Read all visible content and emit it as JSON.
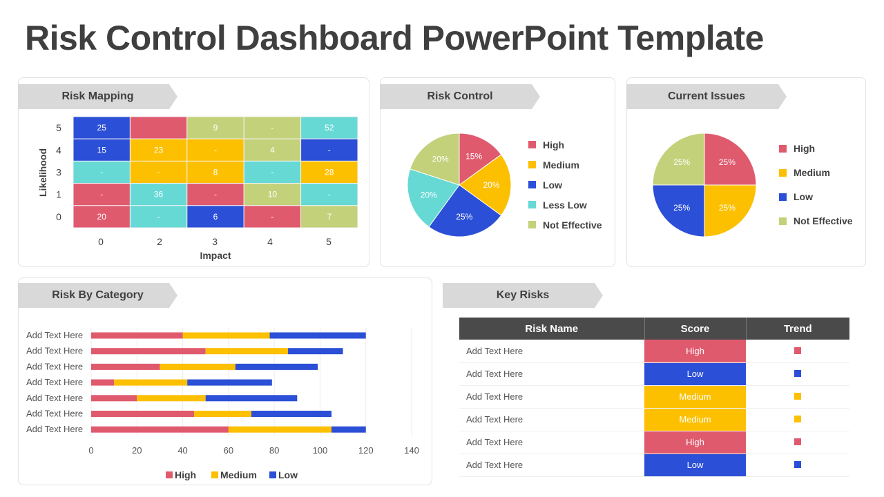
{
  "title": "Risk Control Dashboard PowerPoint Template",
  "colors": {
    "high": "#e05a6e",
    "medium": "#fcc000",
    "low": "#2b4fd6",
    "less_low": "#66d9d5",
    "not_effective": "#c3d17a"
  },
  "risk_mapping": {
    "heading": "Risk Mapping",
    "chart_data": {
      "type": "heatmap",
      "xlabel": "Impact",
      "ylabel": "Likelihood",
      "x_ticks": [
        "0",
        "2",
        "3",
        "4",
        "5"
      ],
      "y_ticks": [
        "5",
        "4",
        "3",
        "1",
        "0"
      ],
      "cells": [
        [
          {
            "v": "25",
            "c": "low"
          },
          {
            "v": "",
            "c": "high"
          },
          {
            "v": "9",
            "c": "not_effective"
          },
          {
            "v": "-",
            "c": "not_effective"
          },
          {
            "v": "52",
            "c": "less_low"
          }
        ],
        [
          {
            "v": "15",
            "c": "low"
          },
          {
            "v": "23",
            "c": "medium"
          },
          {
            "v": "-",
            "c": "medium"
          },
          {
            "v": "4",
            "c": "not_effective"
          },
          {
            "v": "-",
            "c": "low"
          }
        ],
        [
          {
            "v": "-",
            "c": "less_low"
          },
          {
            "v": "-",
            "c": "medium"
          },
          {
            "v": "8",
            "c": "medium"
          },
          {
            "v": "-",
            "c": "less_low"
          },
          {
            "v": "28",
            "c": "medium"
          }
        ],
        [
          {
            "v": "-",
            "c": "high"
          },
          {
            "v": "36",
            "c": "less_low"
          },
          {
            "v": "-",
            "c": "high"
          },
          {
            "v": "10",
            "c": "not_effective"
          },
          {
            "v": "-",
            "c": "less_low"
          }
        ],
        [
          {
            "v": "20",
            "c": "high"
          },
          {
            "v": "-",
            "c": "less_low"
          },
          {
            "v": "6",
            "c": "low"
          },
          {
            "v": "-",
            "c": "high"
          },
          {
            "v": "7",
            "c": "not_effective"
          }
        ]
      ]
    }
  },
  "risk_control": {
    "heading": "Risk Control",
    "chart_data": {
      "type": "pie",
      "labels": [
        "High",
        "Medium",
        "Low",
        "Less Low",
        "Not Effective"
      ],
      "keys": [
        "high",
        "medium",
        "low",
        "less_low",
        "not_effective"
      ],
      "values": [
        15,
        20,
        25,
        20,
        20
      ],
      "data_labels": [
        "15%",
        "20%",
        "25%",
        "20%",
        "20%"
      ],
      "legend": "right"
    }
  },
  "current_issues": {
    "heading": "Current Issues",
    "chart_data": {
      "type": "pie",
      "labels": [
        "High",
        "Medium",
        "Low",
        "Not Effective"
      ],
      "keys": [
        "high",
        "medium",
        "low",
        "not_effective"
      ],
      "values": [
        25,
        25,
        25,
        25
      ],
      "data_labels": [
        "25%",
        "25%",
        "25%",
        "25%"
      ],
      "legend": "right"
    }
  },
  "risk_by_category": {
    "heading": "Risk By Category",
    "chart_data": {
      "type": "bar",
      "orientation": "horizontal",
      "stacked": true,
      "categories": [
        "Add Text Here",
        "Add Text Here",
        "Add Text Here",
        "Add Text Here",
        "Add Text Here",
        "Add Text Here",
        "Add Text Here"
      ],
      "series": [
        {
          "name": "High",
          "key": "high",
          "values": [
            40,
            50,
            30,
            10,
            20,
            45,
            60
          ]
        },
        {
          "name": "Medium",
          "key": "medium",
          "values": [
            38,
            36,
            33,
            32,
            30,
            25,
            45
          ]
        },
        {
          "name": "Low",
          "key": "low",
          "values": [
            42,
            24,
            36,
            37,
            40,
            35,
            15
          ]
        }
      ],
      "xlim": [
        0,
        140
      ],
      "x_ticks": [
        "0",
        "20",
        "40",
        "60",
        "80",
        "100",
        "120",
        "140"
      ],
      "grid": true,
      "legend": "bottom"
    }
  },
  "key_risks": {
    "heading": "Key Risks",
    "columns": [
      "Risk Name",
      "Score",
      "Trend"
    ],
    "rows": [
      {
        "name": "Add Text Here",
        "score": "High",
        "key": "high"
      },
      {
        "name": "Add Text Here",
        "score": "Low",
        "key": "low"
      },
      {
        "name": "Add Text Here",
        "score": "Medium",
        "key": "medium"
      },
      {
        "name": "Add Text Here",
        "score": "Medium",
        "key": "medium"
      },
      {
        "name": "Add Text Here",
        "score": "High",
        "key": "high"
      },
      {
        "name": "Add Text Here",
        "score": "Low",
        "key": "low"
      }
    ]
  }
}
